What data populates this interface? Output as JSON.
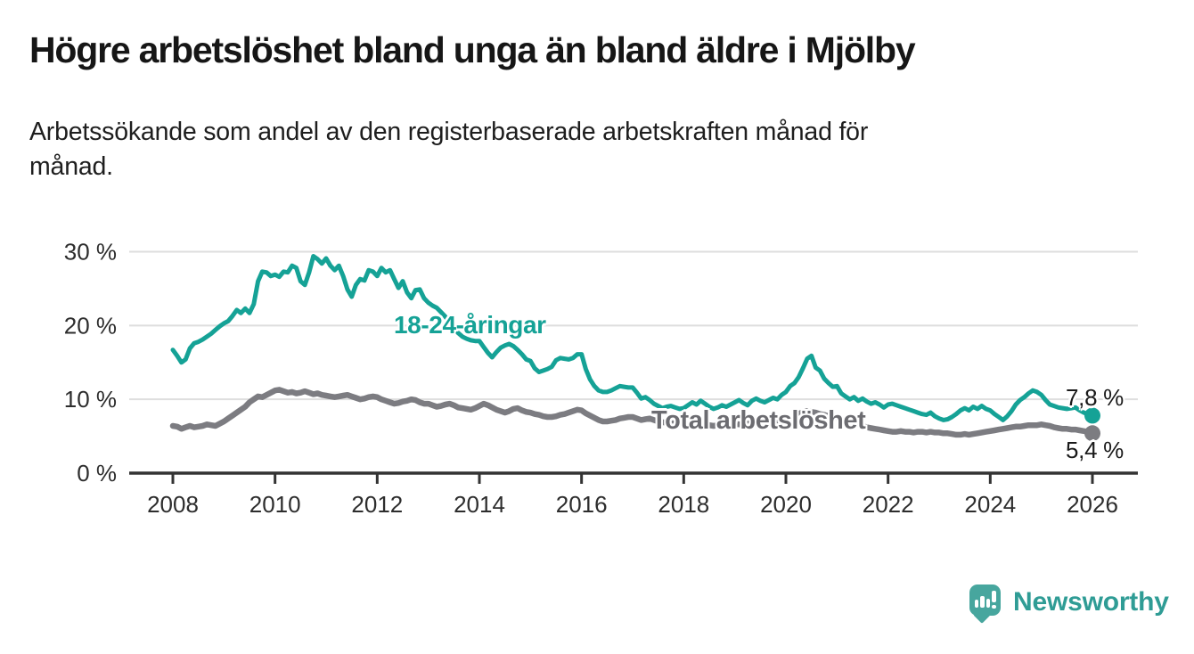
{
  "title": "Högre arbetslöshet bland unga än bland äldre i Mjölby",
  "subtitle": "Arbetssökande som andel av den registerbaserade arbetskraften månad för\nmånad.",
  "branding": {
    "logo_text": "Newsworthy",
    "logo_icon": "bar-chart-speech-bubble"
  },
  "colors": {
    "youth_line": "#15a296",
    "total_line": "#7c7c81",
    "total_label": "#6c6c71",
    "gridline": "#dedede",
    "axis": "#333333",
    "text": "#2d2d2d",
    "logo_teal": "#47a69e"
  },
  "chart_data": {
    "type": "line",
    "title": "Högre arbetslöshet bland unga än bland äldre i Mjölby",
    "subtitle": "Arbetssökande som andel av den registerbaserade arbetskraften månad för månad.",
    "x_unit": "month",
    "x_range": [
      "2008-01",
      "2026-01"
    ],
    "x_tick_labels": [
      "2008",
      "2010",
      "2012",
      "2014",
      "2016",
      "2018",
      "2020",
      "2022",
      "2024",
      "2026"
    ],
    "y_tick_labels": [
      {
        "value": 0,
        "label": "0 %"
      },
      {
        "value": 10,
        "label": "10 %"
      },
      {
        "value": 20,
        "label": "20 %"
      },
      {
        "value": 30,
        "label": "30 %"
      }
    ],
    "ylim": [
      0,
      31.5
    ],
    "grid": "horizontal-only",
    "legend": "inline-labels",
    "series": [
      {
        "name": "18-24-åringar",
        "color": "#15a296",
        "end_label": "7,8 %",
        "end_value": 7.8,
        "values": [
          16.7,
          15.9,
          15.0,
          15.4,
          16.9,
          17.6,
          17.8,
          18.1,
          18.5,
          18.9,
          19.4,
          19.9,
          20.3,
          20.6,
          21.3,
          22.1,
          21.7,
          22.3,
          21.7,
          22.9,
          26.0,
          27.3,
          27.2,
          26.7,
          26.9,
          26.6,
          27.3,
          27.2,
          28.1,
          27.8,
          26.0,
          25.5,
          27.2,
          29.4,
          29.0,
          28.4,
          29.1,
          28.1,
          27.5,
          28.1,
          26.7,
          24.9,
          23.9,
          25.5,
          26.3,
          26.1,
          27.5,
          27.3,
          26.7,
          27.8,
          27.2,
          27.5,
          26.3,
          25.1,
          26.0,
          24.5,
          23.7,
          24.8,
          24.9,
          23.7,
          23.1,
          22.7,
          22.4,
          21.8,
          21.2,
          20.4,
          19.7,
          19.0,
          18.5,
          18.2,
          18.0,
          17.9,
          17.9,
          17.1,
          16.3,
          15.7,
          16.4,
          17.0,
          17.3,
          17.5,
          17.2,
          16.7,
          16.1,
          15.4,
          15.2,
          14.2,
          13.7,
          13.9,
          14.1,
          14.4,
          15.3,
          15.6,
          15.5,
          15.4,
          15.6,
          16.1,
          16.1,
          14.1,
          12.7,
          11.8,
          11.2,
          11.0,
          11.0,
          11.2,
          11.5,
          11.8,
          11.7,
          11.6,
          11.6,
          10.9,
          10.1,
          10.3,
          9.9,
          9.4,
          9.1,
          8.8,
          9.0,
          9.1,
          8.9,
          8.7,
          8.8,
          9.2,
          9.6,
          9.3,
          9.8,
          9.4,
          9.0,
          8.7,
          8.9,
          9.2,
          9.0,
          9.3,
          9.6,
          9.9,
          9.5,
          9.2,
          9.8,
          10.1,
          9.8,
          9.6,
          9.9,
          10.2,
          10.0,
          10.6,
          11.0,
          11.8,
          12.2,
          13.0,
          14.2,
          15.5,
          15.9,
          14.3,
          13.9,
          12.8,
          12.2,
          11.7,
          11.8,
          10.8,
          10.4,
          10.0,
          10.3,
          9.8,
          10.1,
          9.7,
          9.4,
          9.6,
          9.3,
          8.9,
          9.3,
          9.4,
          9.2,
          9.0,
          8.8,
          8.6,
          8.4,
          8.2,
          8.0,
          7.9,
          8.2,
          7.7,
          7.4,
          7.2,
          7.3,
          7.6,
          8.0,
          8.5,
          8.8,
          8.5,
          9.0,
          8.7,
          9.1,
          8.7,
          8.5,
          8.0,
          7.6,
          7.2,
          7.7,
          8.4,
          9.3,
          9.9,
          10.3,
          10.8,
          11.2,
          11.0,
          10.6,
          9.9,
          9.3,
          9.1,
          8.9,
          8.8,
          8.7,
          8.8,
          8.9,
          8.5,
          8.2,
          8.0,
          7.8
        ]
      },
      {
        "name": "Total arbetslöshet",
        "color": "#7c7c81",
        "end_label": "5,4 %",
        "end_value": 5.4,
        "values": [
          6.4,
          6.3,
          6.0,
          6.2,
          6.4,
          6.2,
          6.3,
          6.4,
          6.6,
          6.5,
          6.4,
          6.7,
          7.0,
          7.4,
          7.8,
          8.2,
          8.6,
          9.0,
          9.6,
          10.0,
          10.4,
          10.3,
          10.6,
          10.9,
          11.2,
          11.3,
          11.1,
          10.9,
          11.0,
          10.8,
          10.9,
          11.1,
          10.9,
          10.7,
          10.8,
          10.6,
          10.5,
          10.4,
          10.3,
          10.4,
          10.5,
          10.6,
          10.4,
          10.2,
          10.0,
          10.1,
          10.3,
          10.4,
          10.3,
          10.0,
          9.8,
          9.6,
          9.4,
          9.5,
          9.7,
          9.8,
          10.0,
          9.9,
          9.6,
          9.4,
          9.4,
          9.2,
          9.0,
          9.1,
          9.3,
          9.4,
          9.2,
          8.9,
          8.8,
          8.7,
          8.6,
          8.8,
          9.1,
          9.4,
          9.2,
          8.9,
          8.6,
          8.4,
          8.2,
          8.4,
          8.7,
          8.8,
          8.5,
          8.3,
          8.2,
          8.0,
          7.9,
          7.7,
          7.6,
          7.6,
          7.7,
          7.9,
          8.0,
          8.2,
          8.4,
          8.6,
          8.5,
          8.1,
          7.8,
          7.5,
          7.2,
          7.0,
          7.0,
          7.1,
          7.2,
          7.4,
          7.5,
          7.6,
          7.6,
          7.4,
          7.2,
          7.3,
          7.4,
          7.2,
          7.0,
          6.9,
          6.8,
          6.8,
          6.7,
          6.7,
          6.7,
          6.6,
          6.5,
          6.5,
          6.6,
          6.6,
          6.5,
          6.4,
          6.5,
          6.6,
          6.6,
          6.7,
          6.7,
          6.6,
          6.6,
          6.7,
          6.8,
          6.9,
          6.8,
          6.8,
          6.9,
          7.0,
          7.0,
          7.1,
          7.2,
          7.3,
          7.6,
          8.0,
          8.3,
          8.4,
          8.3,
          8.2,
          8.0,
          7.9,
          7.7,
          7.6,
          7.5,
          7.3,
          7.1,
          6.9,
          6.7,
          6.6,
          6.4,
          6.2,
          6.1,
          6.0,
          5.9,
          5.8,
          5.7,
          5.6,
          5.6,
          5.7,
          5.6,
          5.6,
          5.5,
          5.6,
          5.6,
          5.5,
          5.6,
          5.5,
          5.5,
          5.4,
          5.4,
          5.3,
          5.2,
          5.2,
          5.3,
          5.2,
          5.3,
          5.4,
          5.5,
          5.6,
          5.7,
          5.8,
          5.9,
          6.0,
          6.1,
          6.2,
          6.3,
          6.3,
          6.4,
          6.5,
          6.5,
          6.5,
          6.6,
          6.5,
          6.4,
          6.2,
          6.1,
          6.0,
          6.0,
          5.9,
          5.9,
          5.8,
          5.7,
          5.6,
          5.4
        ]
      }
    ]
  }
}
